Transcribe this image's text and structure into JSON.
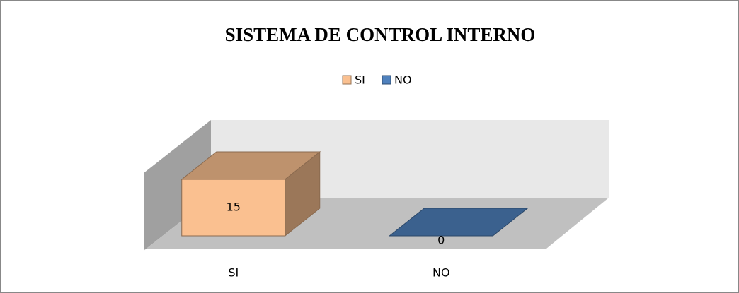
{
  "chart_data": {
    "type": "bar3d",
    "title": "SISTEMA DE CONTROL INTERNO",
    "categories": [
      "SI",
      "NO"
    ],
    "values": [
      15,
      0
    ],
    "colors": [
      "#fac090",
      "#4f81bd"
    ],
    "legend": "top"
  }
}
